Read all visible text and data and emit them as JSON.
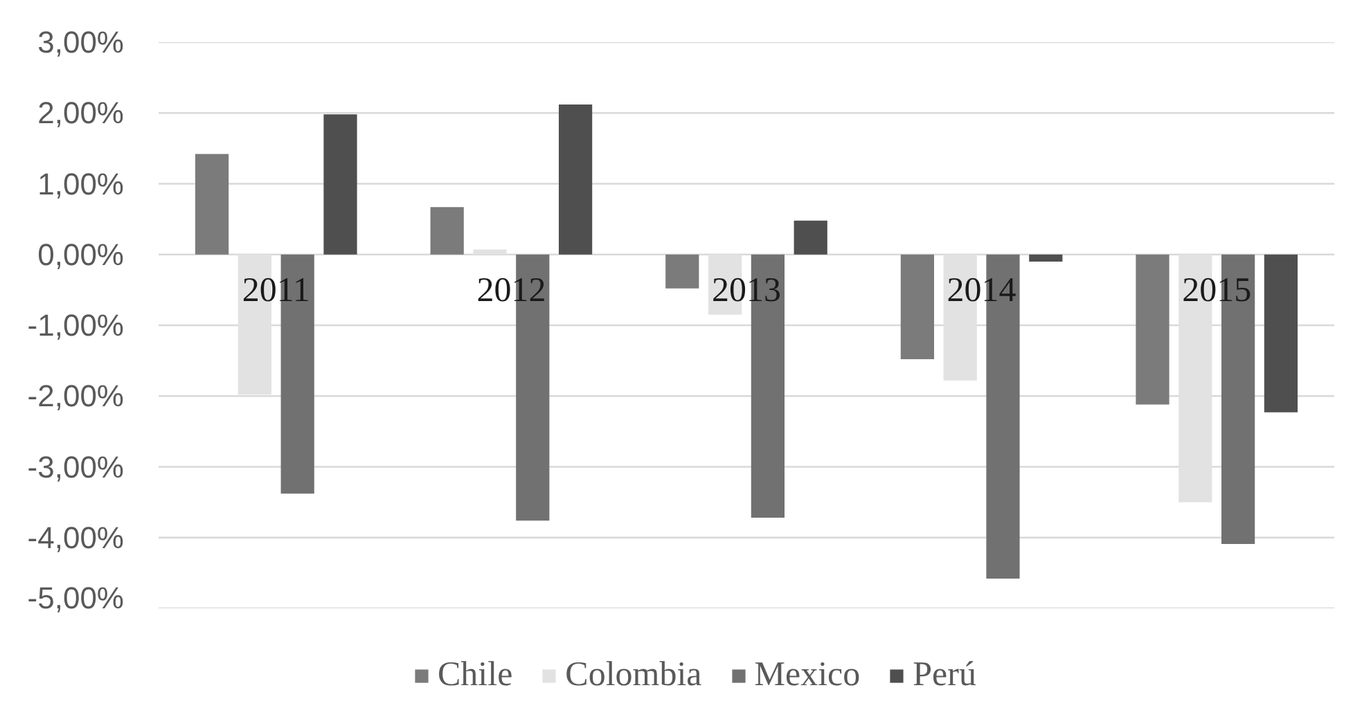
{
  "chart_data": {
    "type": "bar",
    "categories": [
      "2011",
      "2012",
      "2013",
      "2014",
      "2015"
    ],
    "series": [
      {
        "name": "Chile",
        "color": "#7b7b7b",
        "values": [
          1.42,
          0.67,
          -0.48,
          -1.48,
          -2.12
        ]
      },
      {
        "name": "Colombia",
        "color": "#e2e2e2",
        "values": [
          -1.98,
          0.07,
          -0.85,
          -1.78,
          -3.5
        ]
      },
      {
        "name": "Mexico",
        "color": "#717171",
        "values": [
          -3.38,
          -3.76,
          -3.72,
          -4.58,
          -4.09
        ]
      },
      {
        "name": "Perú",
        "color": "#4f4f4f",
        "values": [
          1.98,
          2.12,
          0.48,
          -0.1,
          -2.23
        ]
      }
    ],
    "ylim": [
      -5,
      3
    ],
    "yticks": [
      {
        "value": 3,
        "label": "3,00%"
      },
      {
        "value": 2,
        "label": "2,00%"
      },
      {
        "value": 1,
        "label": "1,00%"
      },
      {
        "value": 0,
        "label": "0,00%"
      },
      {
        "value": -1,
        "label": "-1,00%"
      },
      {
        "value": -2,
        "label": "-2,00%"
      },
      {
        "value": -3,
        "label": "-3,00%"
      },
      {
        "value": -4,
        "label": "-4,00%"
      },
      {
        "value": -5,
        "label": "-5,00%"
      }
    ],
    "grid": "y",
    "legend": "bottom"
  }
}
